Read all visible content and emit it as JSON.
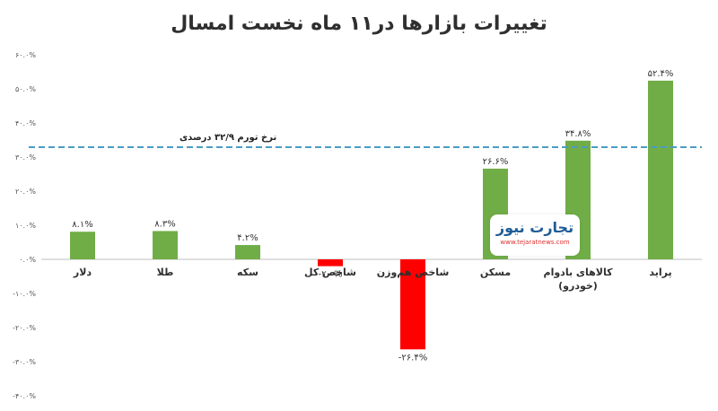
{
  "chart_data": {
    "type": "bar",
    "title": "تغییرات بازارها در۱۱ ماه نخست امسال",
    "categories": [
      "دلار",
      "طلا",
      "سکه",
      "شاخص کل",
      "شاخص هم‌وزن",
      "مسکن",
      "کالاهای بادوام (خودرو)",
      "پراید"
    ],
    "category_lines": [
      [
        "دلار"
      ],
      [
        "طلا"
      ],
      [
        "سکه"
      ],
      [
        "شاخص کل"
      ],
      [
        "شاخص هم‌وزن"
      ],
      [
        "مسکن"
      ],
      [
        "کالاهای بادوام",
        "(خودرو)"
      ],
      [
        "پراید"
      ]
    ],
    "values": [
      8.1,
      8.3,
      4.2,
      -2.0,
      -26.4,
      26.6,
      34.8,
      52.4
    ],
    "value_labels": [
      "۸.۱%",
      "۸.۳%",
      "۴.۲%",
      "-۲.۰%",
      "-۲۶.۴%",
      "۲۶.۶%",
      "۳۴.۸%",
      "۵۲.۴%"
    ],
    "ylim": [
      -40,
      60
    ],
    "yticks": [
      60,
      50,
      40,
      30,
      20,
      10,
      0,
      -10,
      -20,
      -30,
      -40
    ],
    "ytick_labels": [
      "۶۰.۰%",
      "۵۰.۰%",
      "۴۰.۰%",
      "۳۰.۰%",
      "۲۰.۰%",
      "۱۰.۰%",
      "۰.۰%",
      "-۱۰.۰%",
      "-۲۰.۰%",
      "-۳۰.۰%",
      "-۴۰.۰%"
    ],
    "reference_line": {
      "value": 32.9,
      "label": "نرخ تورم ۳۲/۹ درصدی",
      "color": "#4a9cc4",
      "style": "dashed"
    },
    "colors": {
      "positive": "#70ad47",
      "negative": "#ff0000"
    },
    "grid": false
  },
  "logo": {
    "text": "تجارت نیوز",
    "url": "www.tejaratnews.com"
  }
}
